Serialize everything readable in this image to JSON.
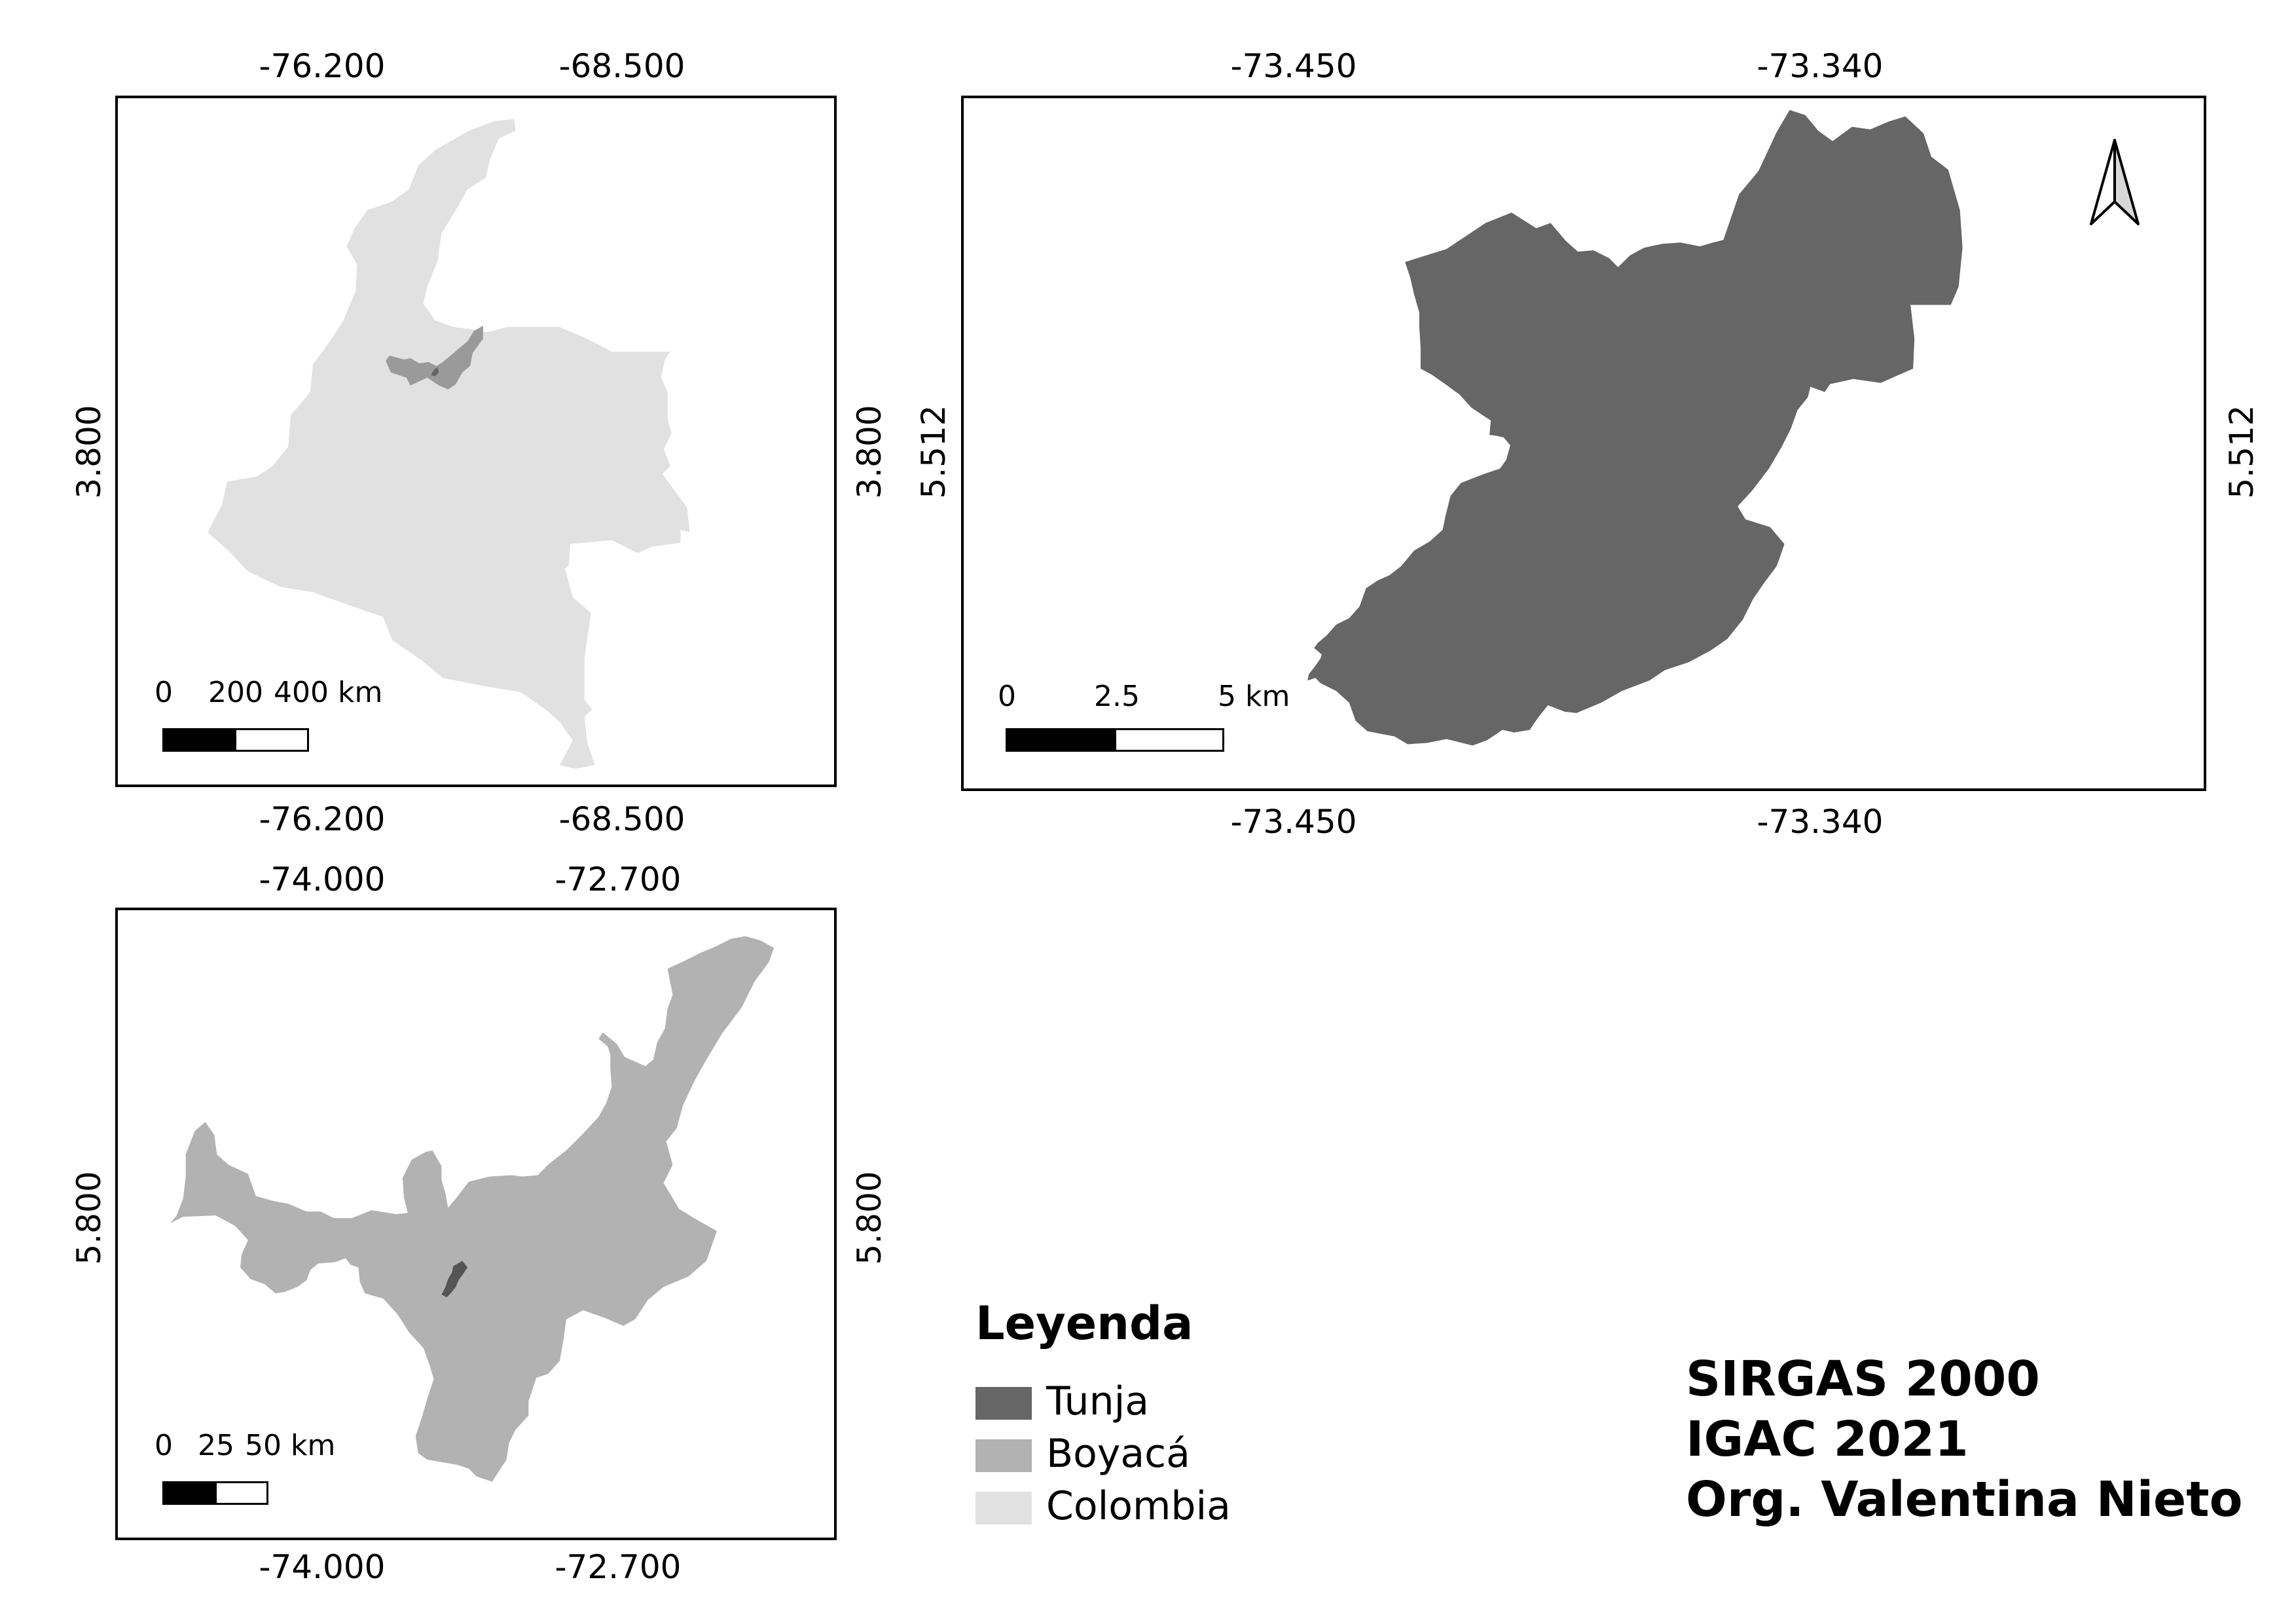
{
  "colors": {
    "tunja": "#666666",
    "boyaca": "#b2b2b2",
    "colombia": "#e1e1e1",
    "frame": "#000000"
  },
  "map_colombia": {
    "top_coords": [
      "-76.200",
      "-68.500"
    ],
    "bottom_coords": [
      "-76.200",
      "-68.500"
    ],
    "left_coord": "3.800",
    "right_coord": "3.800",
    "scale": {
      "labels": [
        "0",
        "200",
        "400 km"
      ]
    }
  },
  "map_tunja": {
    "top_coords": [
      "-73.450",
      "-73.340"
    ],
    "bottom_coords": [
      "-73.450",
      "-73.340"
    ],
    "left_coord": "5.512",
    "right_coord": "5.512",
    "scale": {
      "labels": [
        "0",
        "2.5",
        "5 km"
      ]
    },
    "north_arrow": "north-arrow-icon"
  },
  "map_boyaca": {
    "top_coords": [
      "-74.000",
      "-72.700"
    ],
    "bottom_coords": [
      "-74.000",
      "-72.700"
    ],
    "left_coord": "5.800",
    "right_coord": "5.800",
    "scale": {
      "labels": [
        "0",
        "25",
        "50 km"
      ]
    }
  },
  "legend": {
    "title": "Leyenda",
    "items": [
      {
        "label": "Tunja",
        "color": "#666666"
      },
      {
        "label": "Boyacá",
        "color": "#b2b2b2"
      },
      {
        "label": "Colombia",
        "color": "#e1e1e1"
      }
    ]
  },
  "credits": {
    "line1": "SIRGAS 2000",
    "line2": "IGAC 2021",
    "line3": "Org. Valentina Nieto"
  }
}
